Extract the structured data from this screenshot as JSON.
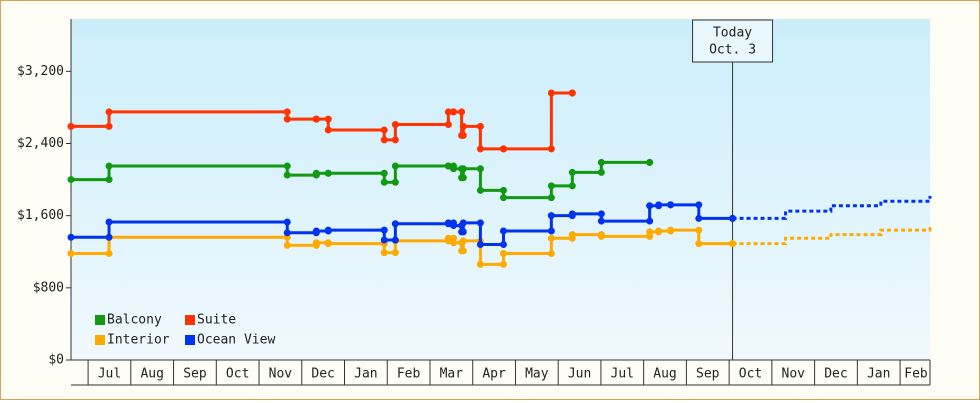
{
  "chart_data": {
    "type": "line",
    "step": true,
    "ylim": [
      0,
      3780
    ],
    "yticks": [
      {
        "value": 0,
        "label": "$0"
      },
      {
        "value": 800,
        "label": "$800"
      },
      {
        "value": 1600,
        "label": "$1,600"
      },
      {
        "value": 2400,
        "label": "$2,400"
      },
      {
        "value": 3200,
        "label": "$3,200"
      }
    ],
    "xlim": [
      -0.4,
      19.7
    ],
    "xticks": [
      {
        "value": 0.5,
        "label": "Jul"
      },
      {
        "value": 1.5,
        "label": "Aug"
      },
      {
        "value": 2.5,
        "label": "Sep"
      },
      {
        "value": 3.5,
        "label": "Oct"
      },
      {
        "value": 4.5,
        "label": "Nov"
      },
      {
        "value": 5.5,
        "label": "Dec"
      },
      {
        "value": 6.5,
        "label": "Jan"
      },
      {
        "value": 7.5,
        "label": "Feb"
      },
      {
        "value": 8.5,
        "label": "Mar"
      },
      {
        "value": 9.5,
        "label": "Apr"
      },
      {
        "value": 10.5,
        "label": "May"
      },
      {
        "value": 11.5,
        "label": "Jun"
      },
      {
        "value": 12.5,
        "label": "Jul"
      },
      {
        "value": 13.5,
        "label": "Aug"
      },
      {
        "value": 14.5,
        "label": "Sep"
      },
      {
        "value": 15.5,
        "label": "Oct"
      },
      {
        "value": 16.5,
        "label": "Nov"
      },
      {
        "value": 17.5,
        "label": "Dec"
      },
      {
        "value": 18.5,
        "label": "Jan"
      },
      {
        "value": 19.5,
        "label": "Feb"
      }
    ],
    "grid": false,
    "legend": "lower left",
    "annotation": {
      "x": 15.08,
      "lines": [
        "Today",
        "Oct. 3"
      ]
    },
    "series": [
      {
        "name": "Balcony",
        "color": "#119911",
        "x": [
          -0.4,
          0.49,
          4.66,
          5.34,
          5.62,
          6.93,
          7.19,
          8.43,
          8.55,
          8.74,
          8.78,
          9.18,
          9.72,
          10.84,
          11.33,
          12.01,
          13.14
        ],
        "values": [
          2000,
          2150,
          2050,
          2070,
          2070,
          1970,
          2150,
          2150,
          2120,
          2020,
          2120,
          1880,
          1800,
          1930,
          2080,
          2190,
          2190
        ]
      },
      {
        "name": "Suite",
        "color": "#ff3300",
        "x": [
          -0.4,
          0.49,
          4.66,
          5.34,
          5.62,
          6.93,
          7.19,
          8.43,
          8.55,
          8.74,
          8.78,
          9.18,
          9.72,
          10.84,
          11.33
        ],
        "values": [
          2590,
          2750,
          2670,
          2670,
          2550,
          2440,
          2610,
          2750,
          2750,
          2490,
          2590,
          2340,
          2340,
          2960,
          2960
        ]
      },
      {
        "name": "Interior",
        "color": "#ffaa00",
        "x": [
          -0.4,
          0.49,
          4.66,
          5.34,
          5.62,
          6.93,
          7.19,
          8.43,
          8.55,
          8.74,
          8.78,
          9.18,
          9.72,
          10.84,
          11.33,
          12.01,
          13.14,
          13.35,
          13.63,
          14.29,
          15.08
        ],
        "values": [
          1180,
          1360,
          1270,
          1300,
          1290,
          1190,
          1320,
          1350,
          1300,
          1210,
          1320,
          1060,
          1180,
          1350,
          1390,
          1370,
          1420,
          1430,
          1440,
          1290,
          1290
        ],
        "forecast": {
          "x": [
            15.08,
            16.32,
            17.38,
            18.55,
            19.7
          ],
          "values": [
            1290,
            1350,
            1390,
            1440,
            1490
          ]
        }
      },
      {
        "name": "Ocean View",
        "color": "#0033ee",
        "x": [
          -0.4,
          0.49,
          4.66,
          5.34,
          5.62,
          6.93,
          7.19,
          8.43,
          8.55,
          8.74,
          8.78,
          9.18,
          9.72,
          10.84,
          11.33,
          12.01,
          13.14,
          13.35,
          13.63,
          14.29,
          15.08
        ],
        "values": [
          1360,
          1530,
          1410,
          1430,
          1440,
          1330,
          1510,
          1520,
          1490,
          1420,
          1520,
          1280,
          1430,
          1600,
          1620,
          1540,
          1710,
          1720,
          1720,
          1570,
          1570
        ],
        "forecast": {
          "x": [
            15.08,
            16.32,
            17.38,
            18.55,
            19.7
          ],
          "values": [
            1570,
            1650,
            1710,
            1760,
            1820
          ]
        }
      }
    ]
  }
}
